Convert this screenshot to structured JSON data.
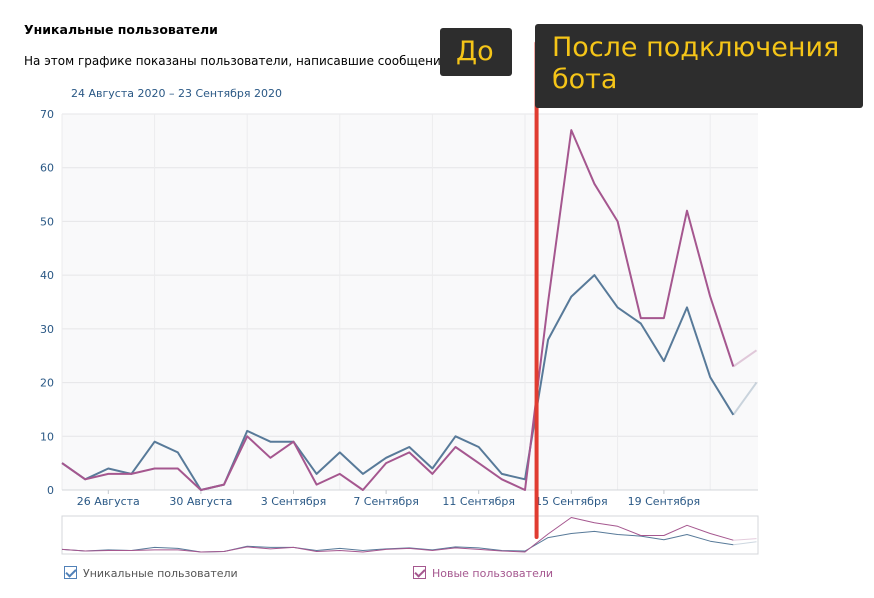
{
  "header": {
    "title": "Уникальные пользователи",
    "subtitle": "На этом графике показаны пользователи, написавшие сообщение",
    "date_range": "24 Августа 2020 – 23 Сентября 2020"
  },
  "annotations": {
    "before": "До",
    "after_line1": "После подключения",
    "after_line2": "бота",
    "callout_bg": "#2d2d2d",
    "callout_text": "#f5c518",
    "divider_color": "#e03c31"
  },
  "legend": {
    "unique_label": "Уникальные пользователи",
    "new_label": "Новые пользователи"
  },
  "chart_data": {
    "type": "line",
    "title": "Уникальные пользователи",
    "x_start": "2020-08-24",
    "x_end": "2020-09-23",
    "ylim": [
      0,
      70
    ],
    "yticks": [
      0,
      10,
      20,
      30,
      40,
      50,
      60,
      70
    ],
    "xtick_labels": [
      {
        "label": "26 Августа",
        "index": 2
      },
      {
        "label": "30 Августа",
        "index": 6
      },
      {
        "label": "3 Сентября",
        "index": 10
      },
      {
        "label": "7 Сентября",
        "index": 14
      },
      {
        "label": "11 Сентября",
        "index": 18
      },
      {
        "label": "15 Сентября",
        "index": 22
      },
      {
        "label": "19 Сентября",
        "index": 26
      }
    ],
    "grid": true,
    "legend_position": "bottom",
    "series": [
      {
        "name": "Уникальные пользователи",
        "color": "#587a99",
        "values": [
          5,
          2,
          4,
          3,
          9,
          7,
          0,
          1,
          11,
          9,
          9,
          3,
          7,
          3,
          6,
          8,
          4,
          10,
          8,
          3,
          2,
          28,
          36,
          40,
          34,
          31,
          24,
          34,
          21,
          14,
          20
        ],
        "partial_from_index": 29
      },
      {
        "name": "Новые пользователи",
        "color": "#a5578f",
        "values": [
          5,
          2,
          3,
          3,
          4,
          4,
          0,
          1,
          10,
          6,
          9,
          1,
          3,
          0,
          5,
          7,
          3,
          8,
          5,
          2,
          0,
          35,
          67,
          57,
          50,
          32,
          32,
          52,
          36,
          23,
          26
        ],
        "partial_from_index": 29
      }
    ],
    "divider_index": 20.5
  }
}
